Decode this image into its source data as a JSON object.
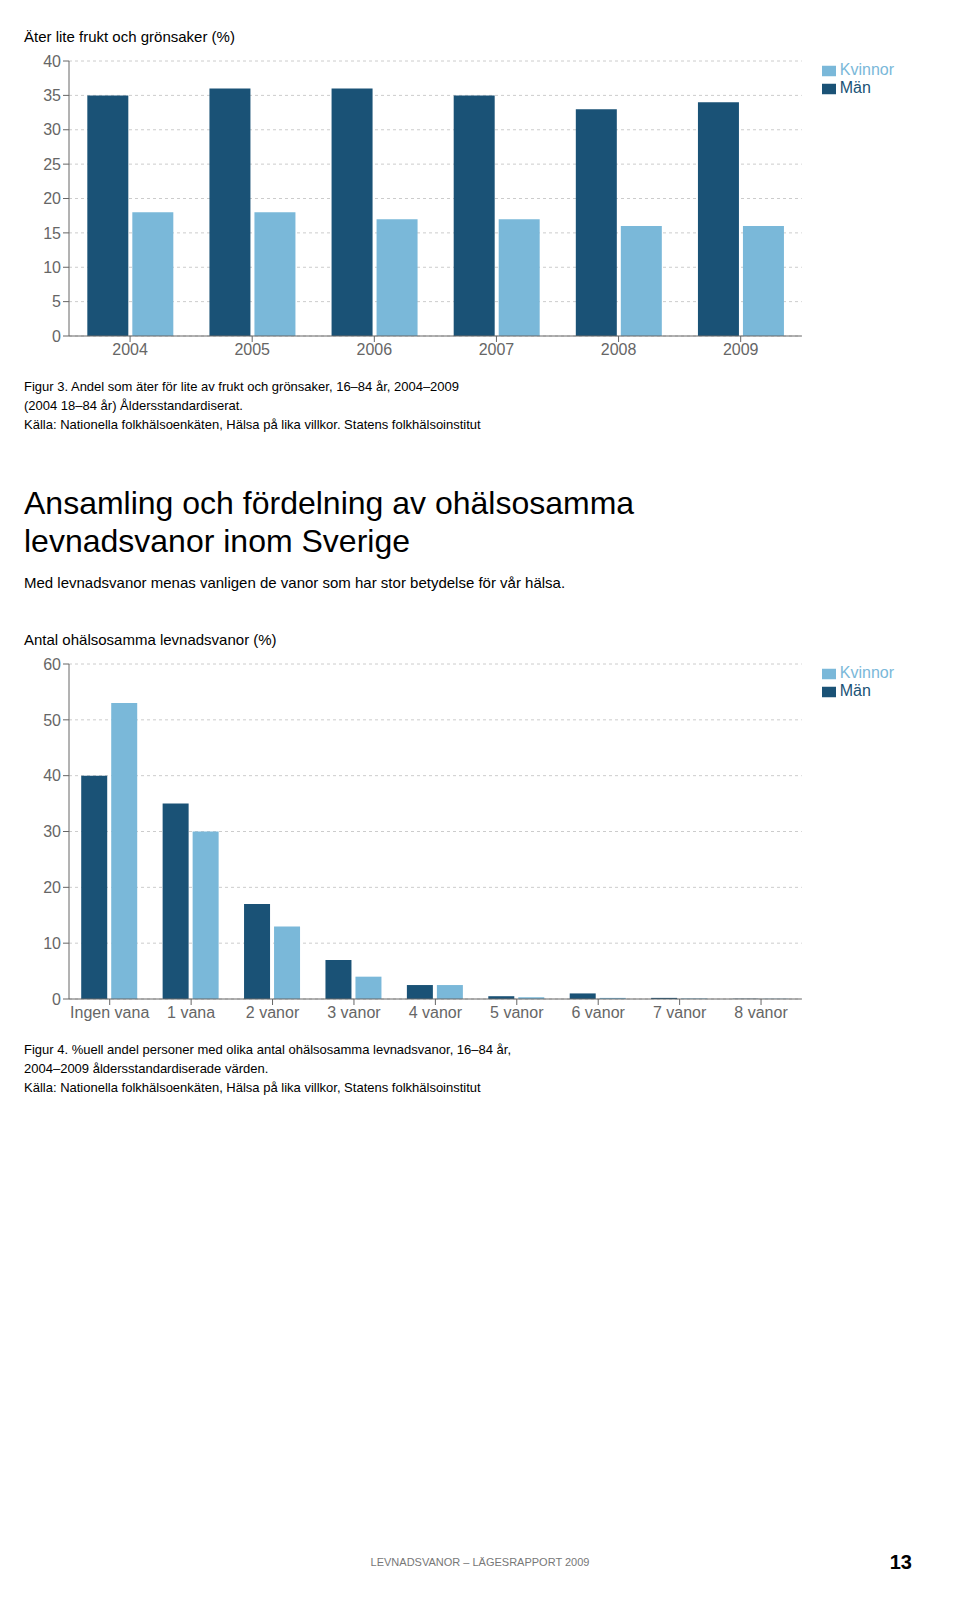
{
  "chart_data": [
    {
      "type": "bar",
      "title": "Äter lite frukt och grönsaker (%)",
      "categories": [
        "2004",
        "2005",
        "2006",
        "2007",
        "2008",
        "2009"
      ],
      "series": [
        {
          "name": "Män",
          "color": "#1a5276",
          "values": [
            35,
            36,
            36,
            35,
            33,
            34
          ]
        },
        {
          "name": "Kvinnor",
          "color": "#7ab8d9",
          "values": [
            18,
            18,
            17,
            17,
            16,
            16
          ]
        }
      ],
      "ylim": [
        0,
        40
      ],
      "yticks": [
        0,
        5,
        10,
        15,
        20,
        25,
        30,
        35,
        40
      ],
      "grid": true,
      "legend": "right",
      "annotations": [
        "Figur 3. Andel som äter för lite av frukt och grönsaker, 16–84 år, 2004–2009",
        "(2004 18–84 år) Åldersstandardiserat.",
        "Källa: Nationella folkhälsoenkäten, Hälsa på lika villkor. Statens folkhälsoinstitut"
      ]
    },
    {
      "type": "bar",
      "title": "Antal ohälsosamma levnadsvanor (%)",
      "categories": [
        "Ingen vana",
        "1 vana",
        "2 vanor",
        "3 vanor",
        "4 vanor",
        "5 vanor",
        "6 vanor",
        "7 vanor",
        "8 vanor"
      ],
      "series": [
        {
          "name": "Män",
          "color": "#1a5276",
          "values": [
            40,
            35,
            17,
            7,
            2.5,
            0.5,
            1.0,
            0.2,
            0.05
          ]
        },
        {
          "name": "Kvinnor",
          "color": "#7ab8d9",
          "values": [
            53,
            30,
            13,
            4,
            2.5,
            0.3,
            0.2,
            0.1,
            0.05
          ]
        }
      ],
      "ylim": [
        0,
        60
      ],
      "yticks": [
        0,
        10,
        20,
        30,
        40,
        50,
        60
      ],
      "grid": true,
      "legend": "right",
      "annotations": [
        "Ansamling och fördelning av ohälsosamma",
        "levnadsvanor inom Sverige",
        "Med levnadsvanor menas vanligen de vanor som har stor betydelse för vår hälsa.",
        "Figur 4. %uell andel personer med olika antal ohälsosamma levnadsvanor, 16–84 år,",
        "2004–2009 åldersstandardiserade värden.",
        "Källa: Nationella folkhälsoenkäten, Hälsa på lika villkor, Statens folkhälsoinstitut",
        "LEVNADSVANOR – LÄGESRAPPORT 2009",
        "13"
      ]
    }
  ]
}
